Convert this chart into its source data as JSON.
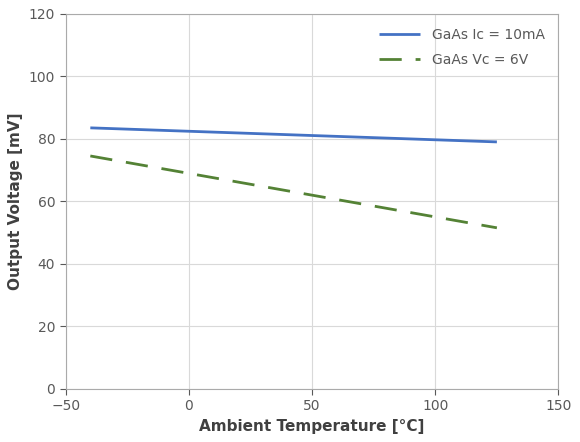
{
  "title": "",
  "xlabel": "Ambient Temperature [°C]",
  "ylabel": "Output Voltage [mV]",
  "xlim": [
    -50,
    150
  ],
  "ylim": [
    0,
    120
  ],
  "xticks": [
    -50,
    0,
    50,
    100,
    150
  ],
  "yticks": [
    0,
    20,
    40,
    60,
    80,
    100,
    120
  ],
  "line1": {
    "x": [
      -40,
      125
    ],
    "y": [
      83.5,
      79.0
    ],
    "color": "#4472C4",
    "linestyle": "-",
    "linewidth": 2.0,
    "label": "GaAs Ic = 10mA"
  },
  "line2": {
    "x": [
      -40,
      125
    ],
    "y": [
      74.5,
      51.5
    ],
    "color": "#548235",
    "linestyle": "--",
    "linewidth": 2.0,
    "label": "GaAs Vc = 6V"
  },
  "legend_fontsize": 10,
  "axis_label_fontsize": 11,
  "tick_fontsize": 10,
  "background_color": "#ffffff",
  "grid_color": "#d9d9d9",
  "tick_color": "#595959",
  "label_color": "#404040"
}
